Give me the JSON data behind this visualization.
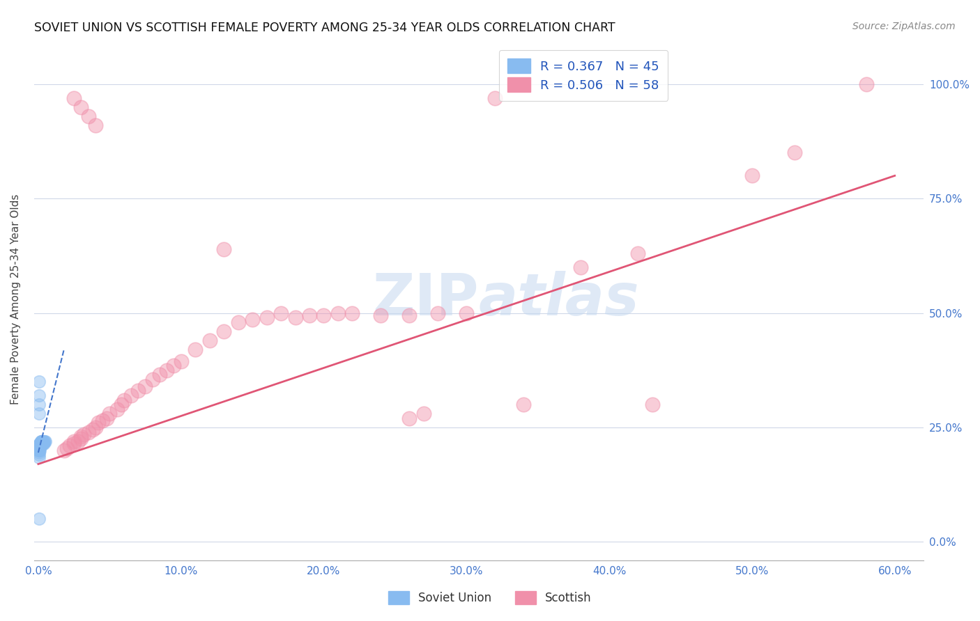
{
  "title": "SOVIET UNION VS SCOTTISH FEMALE POVERTY AMONG 25-34 YEAR OLDS CORRELATION CHART",
  "source": "Source: ZipAtlas.com",
  "ylabel": "Female Poverty Among 25-34 Year Olds",
  "watermark": "ZIPAtlas",
  "soviet_color": "#88bbf0",
  "scottish_color": "#f090aa",
  "soviet_trend_color": "#4477cc",
  "scottish_trend_color": "#e05575",
  "xlim": [
    -0.003,
    0.62
  ],
  "ylim": [
    -0.04,
    1.1
  ],
  "xticks": [
    0.0,
    0.1,
    0.2,
    0.3,
    0.4,
    0.5,
    0.6
  ],
  "yticks": [
    0.0,
    0.25,
    0.5,
    0.75,
    1.0
  ],
  "xticklabels": [
    "0.0%",
    "10.0%",
    "20.0%",
    "30.0%",
    "40.0%",
    "50.0%",
    "60.0%"
  ],
  "yticklabels_right": [
    "0.0%",
    "25.0%",
    "50.0%",
    "75.0%",
    "100.0%"
  ],
  "su_x": [
    0.0003,
    0.0003,
    0.0003,
    0.0003,
    0.0003,
    0.0005,
    0.0005,
    0.0005,
    0.0007,
    0.0007,
    0.0007,
    0.0008,
    0.0008,
    0.0009,
    0.001,
    0.001,
    0.0012,
    0.0012,
    0.0013,
    0.0013,
    0.0015,
    0.0015,
    0.0016,
    0.0016,
    0.0018,
    0.0018,
    0.002,
    0.002,
    0.002,
    0.0022,
    0.0025,
    0.0025,
    0.003,
    0.003,
    0.0035,
    0.0035,
    0.004,
    0.004,
    0.0045,
    0.005,
    0.0003,
    0.0004,
    0.0005,
    0.0006,
    0.0003
  ],
  "su_y": [
    0.205,
    0.2,
    0.195,
    0.19,
    0.185,
    0.21,
    0.205,
    0.2,
    0.21,
    0.205,
    0.2,
    0.215,
    0.21,
    0.2,
    0.215,
    0.21,
    0.215,
    0.21,
    0.215,
    0.21,
    0.215,
    0.21,
    0.215,
    0.21,
    0.22,
    0.215,
    0.22,
    0.215,
    0.21,
    0.22,
    0.22,
    0.215,
    0.22,
    0.215,
    0.22,
    0.215,
    0.22,
    0.215,
    0.22,
    0.22,
    0.3,
    0.28,
    0.35,
    0.32,
    0.05
  ],
  "sc_x": [
    0.018,
    0.02,
    0.022,
    0.025,
    0.025,
    0.028,
    0.03,
    0.03,
    0.032,
    0.035,
    0.038,
    0.04,
    0.042,
    0.045,
    0.048,
    0.05,
    0.055,
    0.058,
    0.06,
    0.065,
    0.07,
    0.075,
    0.08,
    0.085,
    0.09,
    0.095,
    0.1,
    0.11,
    0.12,
    0.13,
    0.14,
    0.15,
    0.16,
    0.17,
    0.18,
    0.19,
    0.2,
    0.21,
    0.22,
    0.24,
    0.26,
    0.28,
    0.3,
    0.38,
    0.42,
    0.5,
    0.53,
    0.58,
    0.13,
    0.32,
    0.26,
    0.34,
    0.27,
    0.43,
    0.025,
    0.03,
    0.035,
    0.04
  ],
  "sc_y": [
    0.2,
    0.205,
    0.21,
    0.215,
    0.22,
    0.22,
    0.225,
    0.23,
    0.235,
    0.24,
    0.245,
    0.25,
    0.26,
    0.265,
    0.27,
    0.28,
    0.29,
    0.3,
    0.31,
    0.32,
    0.33,
    0.34,
    0.355,
    0.365,
    0.375,
    0.385,
    0.395,
    0.42,
    0.44,
    0.46,
    0.48,
    0.485,
    0.49,
    0.5,
    0.49,
    0.495,
    0.495,
    0.5,
    0.5,
    0.495,
    0.495,
    0.5,
    0.5,
    0.6,
    0.63,
    0.8,
    0.85,
    1.0,
    0.64,
    0.97,
    0.27,
    0.3,
    0.28,
    0.3,
    0.97,
    0.95,
    0.93,
    0.91
  ],
  "su_trend_x": [
    0.0,
    0.018
  ],
  "su_trend_y": [
    0.195,
    0.42
  ],
  "sc_trend_x": [
    0.0,
    0.6
  ],
  "sc_trend_y": [
    0.17,
    0.8
  ]
}
